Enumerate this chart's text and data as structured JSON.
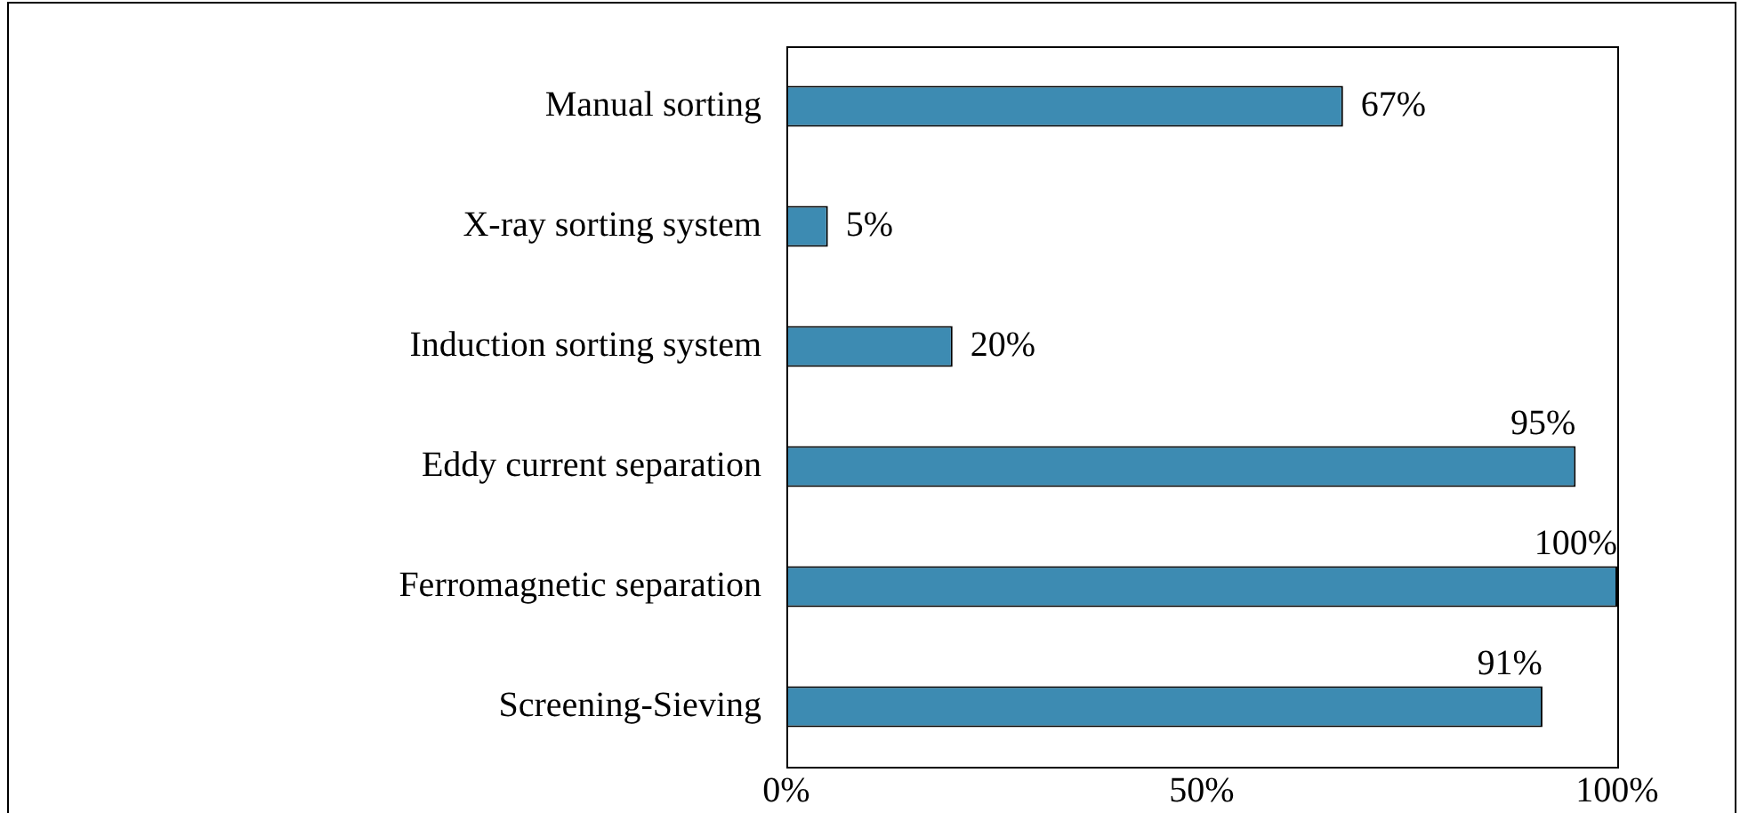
{
  "chart_data": {
    "type": "bar",
    "orientation": "horizontal",
    "categories": [
      "Manual sorting",
      "X-ray sorting system",
      "Induction sorting system",
      "Eddy current separation",
      "Ferromagnetic separation",
      "Screening-Sieving"
    ],
    "values": [
      67,
      5,
      20,
      95,
      100,
      91
    ],
    "value_labels": [
      "67%",
      "5%",
      "20%",
      "95%",
      "100%",
      "91%"
    ],
    "color": "#3d8bb2",
    "xlim": [
      0,
      100
    ],
    "xticks": [
      {
        "value": 0,
        "label": "0%"
      },
      {
        "value": 50,
        "label": "50%"
      },
      {
        "value": 100,
        "label": "100%"
      }
    ],
    "grid": false,
    "legend": false
  }
}
